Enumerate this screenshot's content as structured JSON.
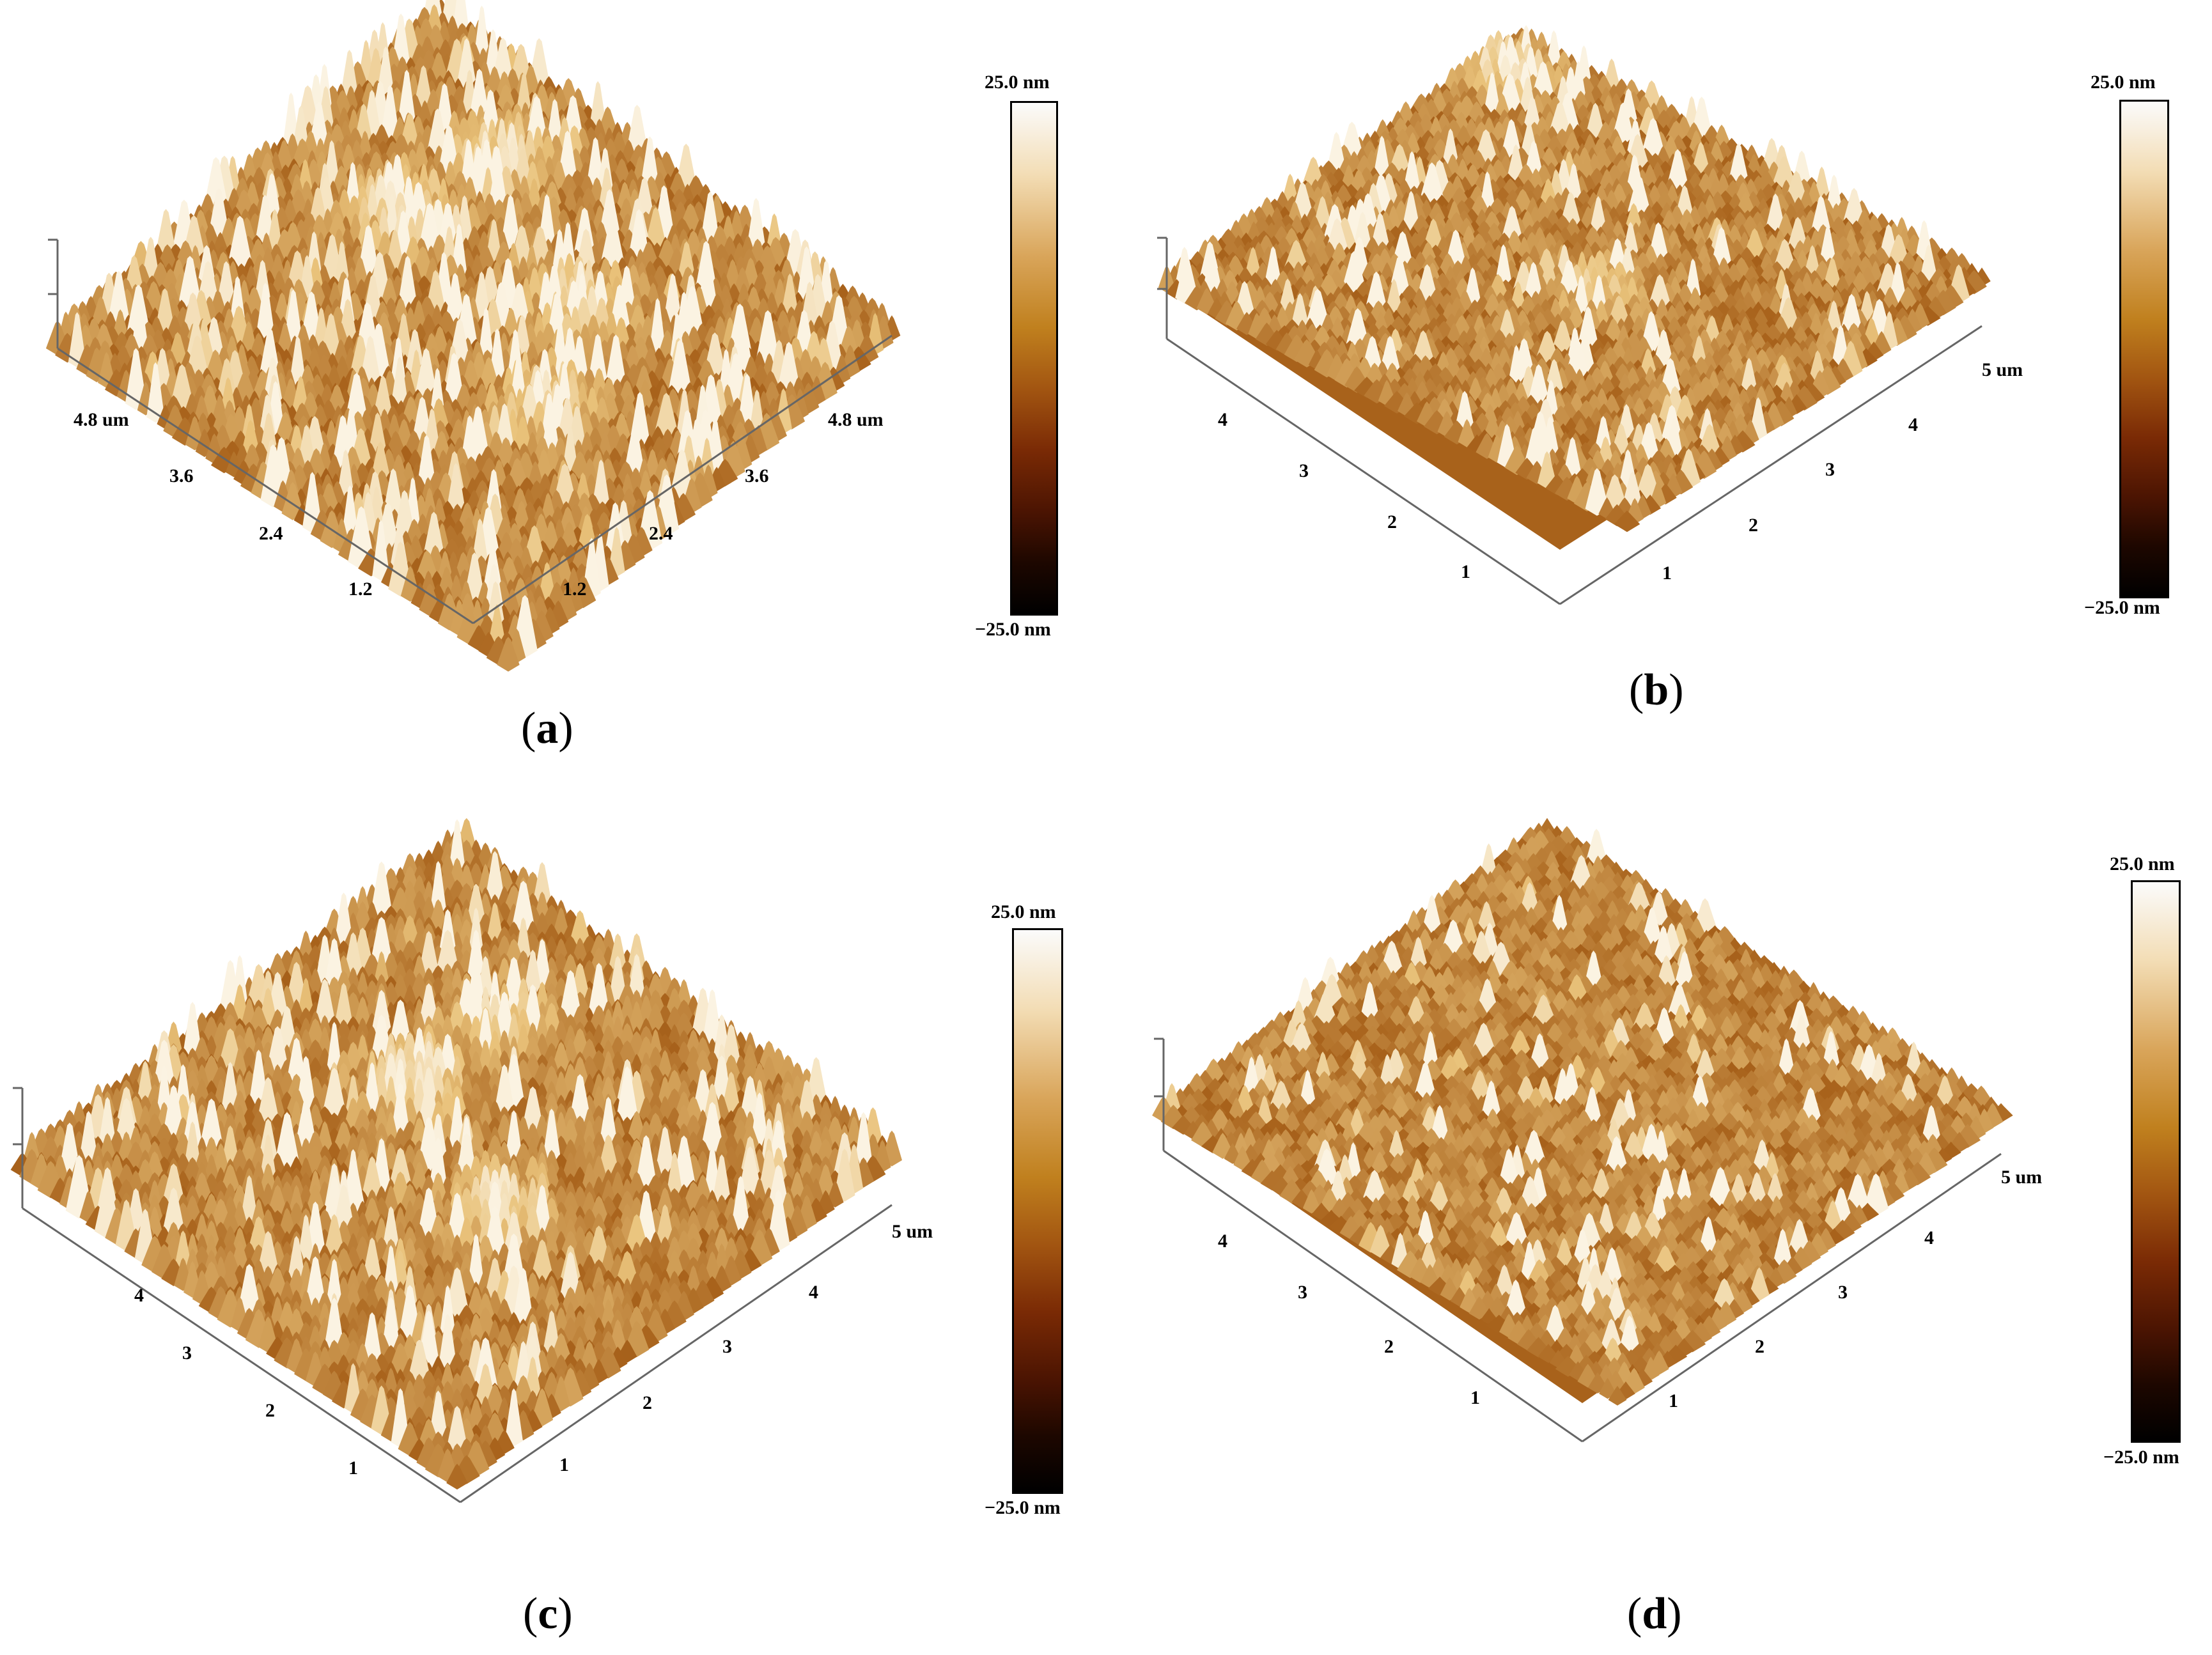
{
  "figure": {
    "panels": [
      {
        "id": "a",
        "caption_letter": "a",
        "colorbar": {
          "top": "25.0 nm",
          "bottom": "−25.0 nm"
        },
        "left_axis_ticks": [
          "4.8 um",
          "3.6",
          "2.4",
          "1.2"
        ],
        "right_axis_ticks": [
          "4.8 um",
          "3.6",
          "2.4",
          "1.2"
        ],
        "surface_tone": "rough-large-peaks"
      },
      {
        "id": "b",
        "caption_letter": "b",
        "colorbar": {
          "top": "25.0 nm",
          "bottom": "−25.0 nm"
        },
        "left_axis_ticks": [
          "4",
          "3",
          "2",
          "1"
        ],
        "right_axis_ticks": [
          "5 um",
          "4",
          "3",
          "2",
          "1"
        ],
        "surface_tone": "fine-grained"
      },
      {
        "id": "c",
        "caption_letter": "c",
        "colorbar": {
          "top": "25.0 nm",
          "bottom": "−25.0 nm"
        },
        "left_axis_ticks": [
          "4",
          "3",
          "2",
          "1"
        ],
        "right_axis_ticks": [
          "5 um",
          "4",
          "3",
          "2",
          "1"
        ],
        "surface_tone": "clustered-bright"
      },
      {
        "id": "d",
        "caption_letter": "d",
        "colorbar": {
          "top": "25.0 nm",
          "bottom": "−25.0 nm"
        },
        "left_axis_ticks": [
          "4",
          "3",
          "2",
          "1"
        ],
        "right_axis_ticks": [
          "5 um",
          "4",
          "3",
          "2",
          "1"
        ],
        "surface_tone": "uniform-fine"
      }
    ],
    "colors": {
      "surface_dark": "#5a1f05",
      "surface_mid": "#a8621b",
      "surface_light": "#e9c27a",
      "surface_peak": "#fbf3e2",
      "axis_line": "#000000"
    }
  }
}
